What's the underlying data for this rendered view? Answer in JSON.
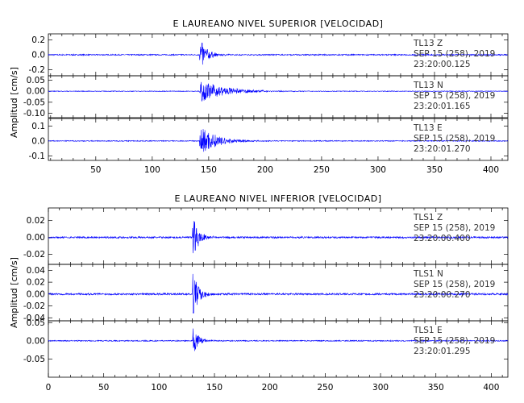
{
  "figure": {
    "panels": [
      {
        "title": "E LAUREANO NIVEL SUPERIOR [VELOCIDAD]",
        "ylabel": "Amplitud [cm/s]",
        "xlim": [
          8,
          415
        ],
        "xticks": [
          50,
          100,
          150,
          200,
          250,
          300,
          350,
          400
        ],
        "xtick_labels": [
          "50",
          "100",
          "150",
          "200",
          "250",
          "300",
          "350",
          "400"
        ],
        "traces": [
          {
            "station": "TL13",
            "component": "Z",
            "date": "SEP 15 (258), 2019",
            "start_time": "23:20:00.125",
            "ylim": [
              -0.28,
              0.28
            ],
            "yticks": [
              0.2,
              0.0,
              -0.2
            ],
            "ytick_labels": [
              "0.2",
              "0.0",
              "-0.2"
            ],
            "event_time": 142,
            "peak_amplitude": 0.24,
            "noise_amplitude": 0.008,
            "decay": 6
          },
          {
            "station": "TL13",
            "component": "N",
            "date": "SEP 15 (258), 2019",
            "start_time": "23:20:01.165",
            "ylim": [
              -0.12,
              0.07
            ],
            "yticks": [
              0.05,
              0.0,
              -0.05,
              -0.1
            ],
            "ytick_labels": [
              "0.05",
              "0.00",
              "-0.05",
              "-0.10"
            ],
            "event_time": 142,
            "peak_amplitude": 0.05,
            "noise_amplitude": 0.0015,
            "decay": 22
          },
          {
            "station": "TL13",
            "component": "E",
            "date": "SEP 15 (258), 2019",
            "start_time": "23:20:01.270",
            "ylim": [
              -0.13,
              0.15
            ],
            "yticks": [
              0.1,
              0.0,
              -0.1
            ],
            "ytick_labels": [
              "0.1",
              "0.0",
              "-0.1"
            ],
            "event_time": 142,
            "peak_amplitude": 0.11,
            "noise_amplitude": 0.003,
            "decay": 14
          }
        ]
      },
      {
        "title": "E LAUREANO NIVEL INFERIOR [VELOCIDAD]",
        "ylabel": "Amplitud [cm/s]",
        "xlim": [
          0,
          415
        ],
        "xticks": [
          0,
          50,
          100,
          150,
          200,
          250,
          300,
          350,
          400
        ],
        "xtick_labels": [
          "0",
          "50",
          "100",
          "150",
          "200",
          "250",
          "300",
          "350",
          "400"
        ],
        "traces": [
          {
            "station": "TLS1",
            "component": "Z",
            "date": "SEP 15 (258), 2019",
            "start_time": "23:20:00.400",
            "ylim": [
              -0.032,
              0.035
            ],
            "yticks": [
              0.02,
              0.0,
              -0.02
            ],
            "ytick_labels": [
              "0.02",
              "0.00",
              "-0.02"
            ],
            "event_time": 130,
            "peak_amplitude": 0.03,
            "noise_amplitude": 0.001,
            "decay": 5
          },
          {
            "station": "TLS1",
            "component": "N",
            "date": "SEP 15 (258), 2019",
            "start_time": "23:20:00.270",
            "ylim": [
              -0.045,
              0.05
            ],
            "yticks": [
              0.04,
              0.02,
              0.0,
              -0.02,
              -0.04
            ],
            "ytick_labels": [
              "0.04",
              "0.02",
              "0.00",
              "-0.02",
              "-0.04"
            ],
            "event_time": 130,
            "peak_amplitude": 0.045,
            "noise_amplitude": 0.0015,
            "decay": 5
          },
          {
            "station": "TLS1",
            "component": "E",
            "date": "SEP 15 (258), 2019",
            "start_time": "23:20:01.295",
            "ylim": [
              -0.1,
              0.055
            ],
            "yticks": [
              0.05,
              0.0,
              -0.05
            ],
            "ytick_labels": [
              "0.05",
              "0.00",
              "-0.05"
            ],
            "event_time": 130,
            "peak_amplitude": 0.045,
            "noise_amplitude": 0.0015,
            "decay": 5
          }
        ]
      }
    ]
  },
  "chart_data": [
    {
      "type": "line",
      "title": "E LAUREANO NIVEL SUPERIOR [VELOCIDAD]",
      "xlabel": "",
      "ylabel": "Amplitud [cm/s]",
      "xlim": [
        8,
        415
      ],
      "series": [
        {
          "name": "TL13 Z",
          "ylim": [
            -0.28,
            0.28
          ],
          "event_x": 142,
          "peak": 0.24
        },
        {
          "name": "TL13 N",
          "ylim": [
            -0.12,
            0.07
          ],
          "event_x": 142,
          "peak": 0.05
        },
        {
          "name": "TL13 E",
          "ylim": [
            -0.13,
            0.15
          ],
          "event_x": 142,
          "peak": 0.11
        }
      ],
      "grid": false,
      "legend": "none"
    },
    {
      "type": "line",
      "title": "E LAUREANO NIVEL INFERIOR [VELOCIDAD]",
      "xlabel": "",
      "ylabel": "Amplitud [cm/s]",
      "xlim": [
        0,
        415
      ],
      "series": [
        {
          "name": "TLS1 Z",
          "ylim": [
            -0.032,
            0.035
          ],
          "event_x": 130,
          "peak": 0.03
        },
        {
          "name": "TLS1 N",
          "ylim": [
            -0.045,
            0.05
          ],
          "event_x": 130,
          "peak": 0.045
        },
        {
          "name": "TLS1 E",
          "ylim": [
            -0.1,
            0.055
          ],
          "event_x": 130,
          "peak": 0.045
        }
      ],
      "grid": false,
      "legend": "none"
    }
  ],
  "colors": {
    "trace": "#0000ff",
    "axes": "#000000",
    "info_text": "#333333"
  }
}
